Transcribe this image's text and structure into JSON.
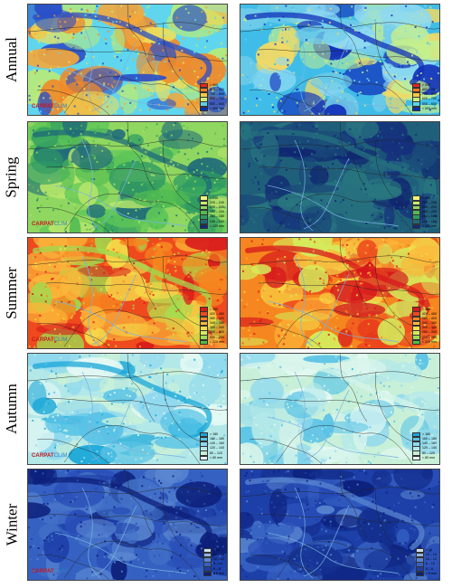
{
  "rows": [
    {
      "label": "Annual",
      "legend": {
        "labels": [
          "> 900",
          "800 – 900",
          "700 – 800",
          "600 – 700",
          "500 – 600",
          "< 500 mm"
        ],
        "colors": [
          "#e8231f",
          "#f47b20",
          "#f9c846",
          "#c9ee7c",
          "#56d3ec",
          "#0a2fb0"
        ]
      },
      "map_colors": {
        "left": [
          "#5fd6ee",
          "#b6ea7b",
          "#eddf5a",
          "#f5a83a",
          "#f08a2a",
          "#2b4fc7"
        ],
        "right": [
          "#3fbde8",
          "#8fd9f2",
          "#c4ef8e",
          "#f0d965",
          "#74cde8",
          "#1130b9"
        ]
      },
      "show_logo": true
    },
    {
      "label": "Spring",
      "legend": {
        "labels": [
          "> 240",
          "220 – 240",
          "200 – 220",
          "180 – 200",
          "160 – 180",
          "140 – 160",
          "< 120 mm"
        ],
        "colors": [
          "#f0f47a",
          "#c8ec6e",
          "#8fd760",
          "#4fbb51",
          "#2e9b62",
          "#1f6a7a",
          "#142a7c"
        ]
      },
      "map_colors": {
        "left": [
          "#8fd760",
          "#b7e66b",
          "#4fbb51",
          "#2e9b62",
          "#5ec658",
          "#1f6a7a"
        ],
        "right": [
          "#1f5f7a",
          "#2a7a80",
          "#1a4a79",
          "#15307c",
          "#0f2470",
          "#26707f"
        ]
      },
      "show_logo": true
    },
    {
      "label": "Summer",
      "legend": {
        "labels": [
          "> 480",
          "420 – 480",
          "380 – 420",
          "340 – 380",
          "300 – 340",
          "260 – 300",
          "220 – 260",
          "< 220 mm"
        ],
        "colors": [
          "#d7181c",
          "#ee4a1d",
          "#f6861f",
          "#fbb73a",
          "#f6dd4a",
          "#d4ec5c",
          "#9fdb4f",
          "#4fbe48"
        ]
      },
      "map_colors": {
        "left": [
          "#ee4a1d",
          "#f6861f",
          "#fbb73a",
          "#d7181c",
          "#f6dd4a",
          "#9fdb4f"
        ],
        "right": [
          "#f6861f",
          "#fbb73a",
          "#ee4a1d",
          "#f6dd4a",
          "#d4ec5c",
          "#d7181c"
        ]
      },
      "show_logo": true
    },
    {
      "label": "Autumn",
      "legend": {
        "labels": [
          "> 180",
          "160 – 180",
          "140 – 160",
          "120 – 140",
          "80 – 120",
          "< 80 mm"
        ],
        "colors": [
          "#1aa7d8",
          "#59c3e6",
          "#8fd8ee",
          "#b3e8e8",
          "#c8f0d8",
          "#e5f9f4"
        ]
      },
      "map_colors": {
        "left": [
          "#b3e8e8",
          "#8fd8ee",
          "#c8f0d8",
          "#59c3e6",
          "#e5f9f4",
          "#1aa7d8"
        ],
        "right": [
          "#c8f0d8",
          "#e5f9f4",
          "#b3e8e8",
          "#8fd8ee",
          "#59c3e6",
          "#d6f4ea"
        ]
      },
      "show_logo": true
    },
    {
      "label": "Winter",
      "legend": {
        "labels": [
          "> 14",
          "12 – 14",
          "10 – 12",
          "8 – 10",
          "6 – 8",
          "< 6 mm"
        ],
        "colors": [
          "#cfe0ee",
          "#8fb3df",
          "#5a86d0",
          "#3561c2",
          "#1d3fa8",
          "#0c1f7a"
        ]
      },
      "map_colors": {
        "left": [
          "#3561c2",
          "#2a4fb8",
          "#5a86d0",
          "#1d3fa8",
          "#4472c8",
          "#0c1f7a"
        ],
        "right": [
          "#1d3fa8",
          "#0c1f7a",
          "#2a4fb8",
          "#3561c2",
          "#14308f",
          "#5a86d0"
        ]
      },
      "show_logo": true
    }
  ],
  "logo": {
    "part1": "CARPAT",
    "part2": "CLIM"
  },
  "map_lines": {
    "border": "#222222",
    "river": "#7ab2e0"
  }
}
